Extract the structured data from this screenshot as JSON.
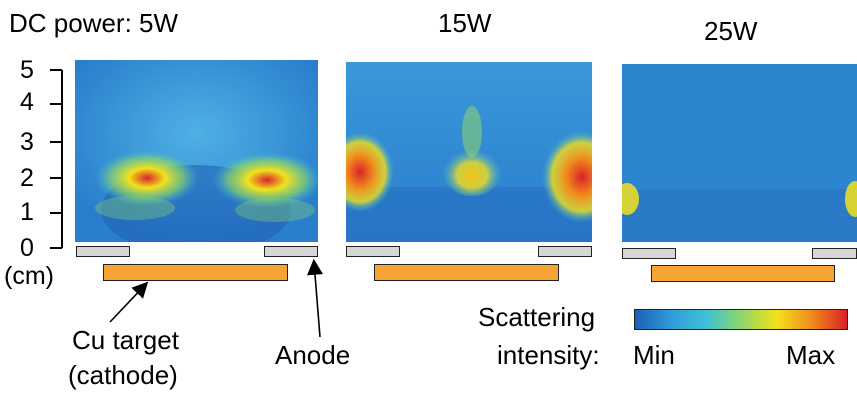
{
  "panels": [
    {
      "title": "DC power: 5W"
    },
    {
      "title": "15W"
    },
    {
      "title": "25W"
    }
  ],
  "y_axis": {
    "ticks": [
      "5",
      "4",
      "3",
      "2",
      "1",
      "0"
    ],
    "unit": "(cm)"
  },
  "annotations": {
    "target_line1": "Cu target",
    "target_line2": "(cathode)",
    "anode": "Anode"
  },
  "colorbar": {
    "title_line1": "Scattering",
    "title_line2": "intensity:",
    "min_label": "Min",
    "max_label": "Max",
    "colors": [
      "#1f5fb4",
      "#2f9ad8",
      "#3cc0d8",
      "#8cd66a",
      "#f2e21c",
      "#f08a1c",
      "#d8232a"
    ]
  },
  "colors": {
    "target_fill": "#f6a534",
    "anode_fill": "#d6d6d6",
    "background_blue": "#2e86d0"
  }
}
